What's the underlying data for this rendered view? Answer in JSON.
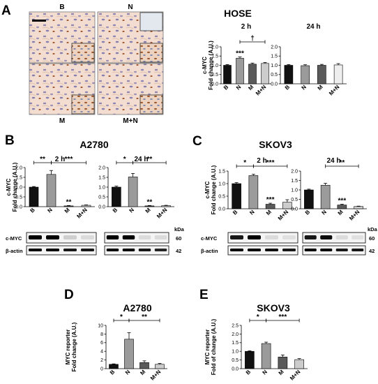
{
  "panel_letters": [
    "A",
    "B",
    "C",
    "D",
    "E"
  ],
  "micrograph": {
    "labels": [
      "B",
      "N",
      "M",
      "M+N"
    ],
    "colors": {
      "background": "#f2ddd0",
      "nucleus_blue": "#8f86b3",
      "nucleus_brown": "#9c5a2e"
    }
  },
  "colors": {
    "B": "#111111",
    "N": "#9b9b9b",
    "M": "#5a5a5a",
    "M+N": "#cccccc",
    "MN_light": "#eeeeee"
  },
  "western_blot": {
    "kda_label": "kDa",
    "rows": [
      {
        "label": "c-MYC",
        "kda": "60"
      },
      {
        "label": "β-actin",
        "kda": "42"
      }
    ]
  },
  "chart_data": [
    {
      "id": "hose_2h",
      "panel": "A",
      "type": "bar",
      "title": "HOSE",
      "subtitle": "2 h",
      "ylabel": [
        "c-MYC",
        "Fold change (A.U.)"
      ],
      "categories": [
        "B",
        "N",
        "M",
        "M+N"
      ],
      "values": [
        1.0,
        1.38,
        1.06,
        1.1
      ],
      "errors": [
        0.04,
        0.07,
        0.06,
        0.05
      ],
      "ylim": [
        0,
        2.0
      ],
      "yticks": [
        "0.0",
        "0.5",
        "1.0",
        "1.5",
        "2.0"
      ],
      "annotations": [
        {
          "bar": 1,
          "text": "***"
        }
      ],
      "brackets": [
        {
          "from": 1,
          "to": 3,
          "text": "†"
        }
      ]
    },
    {
      "id": "hose_24h",
      "panel": "A",
      "type": "bar",
      "subtitle": "24 h",
      "categories": [
        "B",
        "N",
        "M",
        "M+N"
      ],
      "values": [
        1.0,
        0.98,
        1.0,
        1.02
      ],
      "errors": [
        0.04,
        0.05,
        0.05,
        0.07
      ],
      "ylim": [
        0,
        2.0
      ],
      "yticks": [
        "0.0",
        "0.5",
        "1.0",
        "1.5",
        "2.0"
      ]
    },
    {
      "id": "a2780_2h",
      "panel": "B",
      "type": "bar",
      "title": "A2780",
      "subtitle": "2 h",
      "ylabel": [
        "c-MYC",
        "Fold change (A.U.)"
      ],
      "categories": [
        "B",
        "N",
        "M",
        "M+N"
      ],
      "values": [
        1.0,
        1.65,
        0.04,
        0.07
      ],
      "errors": [
        0.03,
        0.2,
        0.02,
        0.02
      ],
      "ylim": [
        0,
        2.0
      ],
      "yticks": [
        "0.0",
        "0.5",
        "1.0",
        "1.5",
        "2.0"
      ],
      "annotations": [
        {
          "bar": 2,
          "text": "**"
        }
      ],
      "brackets": [
        {
          "from": 0,
          "to": 1,
          "text": "**"
        },
        {
          "from": 1,
          "to": 3,
          "text": "***"
        }
      ]
    },
    {
      "id": "a2780_24h",
      "panel": "B",
      "type": "bar",
      "subtitle": "24 h",
      "categories": [
        "B",
        "N",
        "M",
        "M+N"
      ],
      "values": [
        1.0,
        1.52,
        0.04,
        0.05
      ],
      "errors": [
        0.05,
        0.18,
        0.02,
        0.02
      ],
      "ylim": [
        0,
        2.0
      ],
      "yticks": [
        "0.0",
        "0.5",
        "1.0",
        "1.5",
        "2.0"
      ],
      "annotations": [
        {
          "bar": 2,
          "text": "**"
        }
      ],
      "brackets": [
        {
          "from": 0,
          "to": 1,
          "text": "*"
        },
        {
          "from": 1,
          "to": 3,
          "text": "**"
        }
      ]
    },
    {
      "id": "skov3_2h",
      "panel": "C",
      "type": "bar",
      "title": "SKOV3",
      "subtitle": "2 h",
      "ylabel": [
        "c-MYC",
        "Fold change (A.U.)"
      ],
      "categories": [
        "B",
        "N",
        "M",
        "M+N"
      ],
      "values": [
        1.0,
        1.32,
        0.18,
        0.26
      ],
      "errors": [
        0.04,
        0.05,
        0.04,
        0.1
      ],
      "ylim": [
        0,
        1.5
      ],
      "yticks": [
        "0.0",
        "0.5",
        "1.0",
        "1.5"
      ],
      "annotations": [
        {
          "bar": 2,
          "text": "***"
        }
      ],
      "brackets": [
        {
          "from": 0,
          "to": 1,
          "text": "*"
        },
        {
          "from": 1,
          "to": 3,
          "text": "***"
        }
      ]
    },
    {
      "id": "skov3_24h",
      "panel": "C",
      "type": "bar",
      "subtitle": "24 h",
      "categories": [
        "B",
        "N",
        "M",
        "M+N"
      ],
      "values": [
        1.0,
        1.25,
        0.2,
        0.12
      ],
      "errors": [
        0.04,
        0.1,
        0.04,
        0.02
      ],
      "ylim": [
        0,
        2.0
      ],
      "yticks": [
        "0.0",
        "0.5",
        "1.0",
        "1.5",
        "2.0"
      ],
      "annotations": [
        {
          "bar": 2,
          "text": "***"
        }
      ],
      "brackets": [
        {
          "from": 1,
          "to": 3,
          "text": "**"
        }
      ]
    },
    {
      "id": "a2780_reporter",
      "panel": "D",
      "type": "bar",
      "title": "A2780",
      "ylabel": [
        "MYC reporter",
        "Fold change (A.U.)"
      ],
      "categories": [
        "B",
        "N",
        "M",
        "M+N"
      ],
      "values": [
        1.0,
        6.8,
        1.4,
        1.0
      ],
      "errors": [
        0.1,
        1.5,
        0.4,
        0.2
      ],
      "ylim": [
        0,
        10
      ],
      "yticks": [
        "0",
        "2",
        "4",
        "6",
        "8",
        "10"
      ],
      "brackets": [
        {
          "from": 0,
          "to": 1,
          "text": "*"
        },
        {
          "from": 1,
          "to": 3,
          "text": "**"
        }
      ]
    },
    {
      "id": "skov3_reporter",
      "panel": "E",
      "type": "bar",
      "title": "SKOV3",
      "ylabel": [
        "MYC reporter",
        "Fold of change (A.U.)"
      ],
      "categories": [
        "B",
        "N",
        "M",
        "M+N"
      ],
      "values": [
        1.0,
        1.45,
        0.67,
        0.52
      ],
      "errors": [
        0.03,
        0.08,
        0.12,
        0.06
      ],
      "ylim": [
        0,
        2.5
      ],
      "yticks": [
        "0.0",
        "0.5",
        "1.0",
        "1.5",
        "2.0",
        "2.5"
      ],
      "brackets": [
        {
          "from": 0,
          "to": 1,
          "text": "*"
        },
        {
          "from": 1,
          "to": 3,
          "text": "***"
        }
      ]
    }
  ]
}
